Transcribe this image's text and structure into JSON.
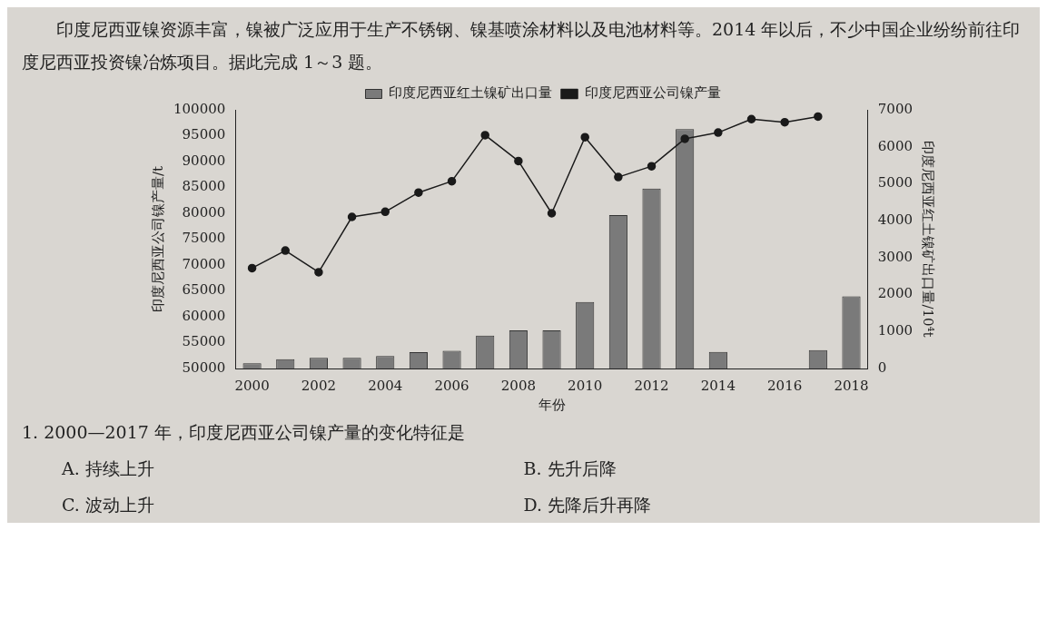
{
  "chart_data": {
    "type": "bar",
    "categories": [
      "2000",
      null,
      "2002",
      null,
      "2004",
      null,
      "2006",
      null,
      "2008",
      null,
      "2010",
      null,
      "2012",
      null,
      "2014",
      null,
      "2016",
      null,
      "2018"
    ],
    "series": [
      {
        "name": "印度尼西亚红土镍矿出口量",
        "axis": "y2",
        "color": "#7a7a7a",
        "values": [
          140,
          250,
          290,
          290,
          340,
          440,
          480,
          890,
          1030,
          1030,
          1800,
          4150,
          4870,
          6480,
          450,
          null,
          null,
          500,
          1950
        ]
      },
      {
        "name": "印度尼西亚公司镍产量",
        "type": "line",
        "axis": "y",
        "color": "#1a1a1a",
        "marker": "circle",
        "values": [
          69400,
          72800,
          68600,
          79300,
          80300,
          84000,
          86200,
          95100,
          90100,
          80000,
          94700,
          87000,
          89100,
          94400,
          95600,
          98200,
          97600,
          98700,
          null
        ]
      }
    ],
    "xlabel": "年份",
    "ylabel": "印度尼西亚公司镍产量/t",
    "y2label": "印度尼西亚红土镍矿出口量/10⁴t",
    "ylim": [
      50000,
      100000
    ],
    "yticks": [
      50000,
      55000,
      60000,
      65000,
      70000,
      75000,
      80000,
      85000,
      90000,
      95000,
      100000
    ],
    "y2lim": [
      0,
      7000
    ],
    "y2ticks": [
      0,
      1000,
      2000,
      3000,
      4000,
      5000,
      6000,
      7000
    ],
    "grid": false,
    "legend": "top",
    "annotations": [
      "印度尼西亚镍资源丰富，镍被广泛应用于生产不锈钢、镍基喷涂材料以及电池材料等。2014 年以后，不少中国企业纷纷前往印度尼西亚投资镍冶炼项目。据此完成 1～3 题。",
      "1. 2000—2017 年，印度尼西亚公司镍产量的变化特征是",
      "A. 持续上升",
      "B. 先升后降",
      "C. 波动上升",
      "D. 先降后升再降"
    ]
  }
}
